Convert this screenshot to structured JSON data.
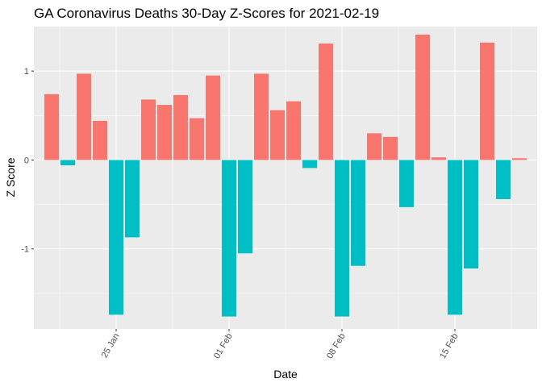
{
  "chart_data": {
    "type": "bar",
    "title": "GA Coronavirus Deaths 30-Day Z-Scores for 2021-02-19",
    "xlabel": "Date",
    "ylabel": "Z Score",
    "ylim": [
      -1.9,
      1.5
    ],
    "y_ticks": [
      -1,
      0,
      1
    ],
    "x_ticks": [
      {
        "date": "2021-01-25",
        "label": "25 Jan"
      },
      {
        "date": "2021-02-01",
        "label": "01 Feb"
      },
      {
        "date": "2021-02-08",
        "label": "08 Feb"
      },
      {
        "date": "2021-02-15",
        "label": "15 Feb"
      }
    ],
    "dates": [
      "2021-01-21",
      "2021-01-22",
      "2021-01-23",
      "2021-01-24",
      "2021-01-25",
      "2021-01-26",
      "2021-01-27",
      "2021-01-28",
      "2021-01-29",
      "2021-01-30",
      "2021-01-31",
      "2021-02-01",
      "2021-02-02",
      "2021-02-03",
      "2021-02-04",
      "2021-02-05",
      "2021-02-06",
      "2021-02-07",
      "2021-02-08",
      "2021-02-09",
      "2021-02-10",
      "2021-02-11",
      "2021-02-12",
      "2021-02-13",
      "2021-02-14",
      "2021-02-15",
      "2021-02-16",
      "2021-02-17",
      "2021-02-18",
      "2021-02-19"
    ],
    "values": [
      0.74,
      -0.06,
      0.97,
      0.44,
      -1.74,
      -0.87,
      0.68,
      0.62,
      0.73,
      0.47,
      0.95,
      -1.76,
      -1.05,
      0.97,
      0.56,
      0.66,
      -0.09,
      1.31,
      -1.76,
      -1.19,
      0.3,
      0.26,
      -0.53,
      1.41,
      0.03,
      -1.74,
      -1.22,
      1.32,
      -0.44,
      0.02
    ],
    "colors": {
      "positive": "#F8766D",
      "negative": "#00BFC4"
    },
    "panel_background": "#EBEBEB",
    "grid": true,
    "legend": "none"
  }
}
